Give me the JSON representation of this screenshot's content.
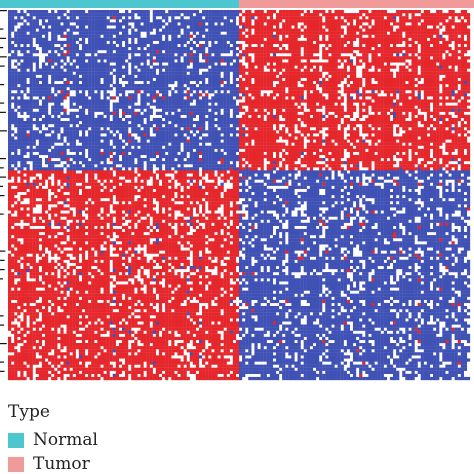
{
  "chart_data": {
    "type": "heatmap",
    "title": "",
    "column_annotation": {
      "name": "Type",
      "groups": [
        {
          "label": "Normal",
          "color": "#4cc7cf",
          "column_fraction": 0.5
        },
        {
          "label": "Tumor",
          "color": "#f19a9a",
          "column_fraction": 0.5
        }
      ]
    },
    "row_clusters": 2,
    "column_clusters": 2,
    "block_pattern": [
      [
        "low",
        "high"
      ],
      [
        "high",
        "low"
      ]
    ],
    "row_split_fraction": 0.43,
    "colors": {
      "low": "#3f51b5",
      "high": "#e5262b",
      "mid": "#ffffff"
    }
  },
  "legend": {
    "title": "Type",
    "items": [
      {
        "label": "Normal",
        "color": "#4cc7cf"
      },
      {
        "label": "Tumor",
        "color": "#f19a9a"
      }
    ]
  }
}
